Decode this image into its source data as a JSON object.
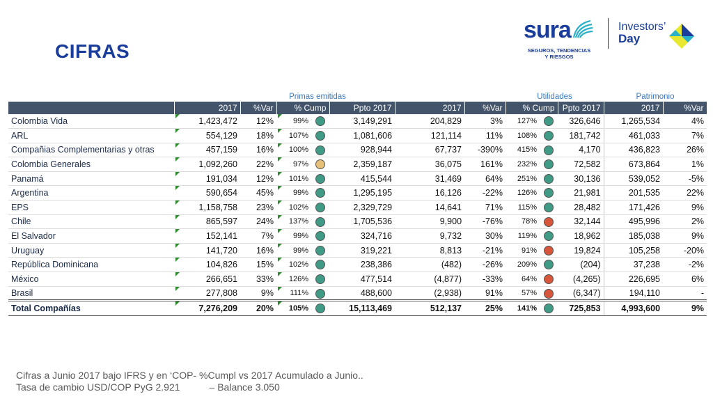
{
  "title": "CIFRAS",
  "logo": {
    "brand": "sura",
    "tagline1": "SEGUROS, TENDENCIAS",
    "tagline2": "Y RIESGOS",
    "investors": "Investors’",
    "day": "Day"
  },
  "groups": {
    "primas": "Primas emitidas",
    "utilidades": "Utilidades",
    "patrimonio": "Patrimonio"
  },
  "headers": [
    "2017",
    "%Var",
    "% Cump",
    "Ppto 2017",
    "2017",
    "%Var",
    "% Cump",
    "Ppto 2017",
    "2017",
    "%Var"
  ],
  "rows": [
    {
      "name": "Colombia Vida",
      "p2017": "1,423,472",
      "pvar": "12%",
      "pcump": "99%",
      "pdot": "g",
      "pppto": "3,149,291",
      "u2017": "204,829",
      "uvar": "3%",
      "ucump": "127%",
      "udot": "g",
      "uppto": "326,646",
      "pa2017": "1,265,534",
      "pavar": "4%"
    },
    {
      "name": "ARL",
      "p2017": "554,129",
      "pvar": "18%",
      "pcump": "107%",
      "pdot": "g",
      "pppto": "1,081,606",
      "u2017": "121,114",
      "uvar": "11%",
      "ucump": "108%",
      "udot": "g",
      "uppto": "181,742",
      "pa2017": "461,033",
      "pavar": "7%"
    },
    {
      "name": "Compañias Complementarias y otras",
      "p2017": "457,159",
      "pvar": "16%",
      "pcump": "100%",
      "pdot": "g",
      "pppto": "928,944",
      "u2017": "67,737",
      "uvar": "-390%",
      "ucump": "415%",
      "udot": "g",
      "uppto": "4,170",
      "pa2017": "436,823",
      "pavar": "26%"
    },
    {
      "name": "Colombia Generales",
      "p2017": "1,092,260",
      "pvar": "22%",
      "pcump": "97%",
      "pdot": "y",
      "pppto": "2,359,187",
      "u2017": "36,075",
      "uvar": "161%",
      "ucump": "232%",
      "udot": "g",
      "uppto": "72,582",
      "pa2017": "673,864",
      "pavar": "1%"
    },
    {
      "name": "Panamá",
      "p2017": "191,034",
      "pvar": "12%",
      "pcump": "101%",
      "pdot": "g",
      "pppto": "415,544",
      "u2017": "31,469",
      "uvar": "64%",
      "ucump": "251%",
      "udot": "g",
      "uppto": "30,136",
      "pa2017": "539,052",
      "pavar": "-5%"
    },
    {
      "name": "Argentina",
      "p2017": "590,654",
      "pvar": "45%",
      "pcump": "99%",
      "pdot": "g",
      "pppto": "1,295,195",
      "u2017": "16,126",
      "uvar": "-22%",
      "ucump": "126%",
      "udot": "g",
      "uppto": "21,981",
      "pa2017": "201,535",
      "pavar": "22%"
    },
    {
      "name": "EPS",
      "p2017": "1,158,758",
      "pvar": "23%",
      "pcump": "102%",
      "pdot": "g",
      "pppto": "2,329,729",
      "u2017": "14,641",
      "uvar": "71%",
      "ucump": "115%",
      "udot": "g",
      "uppto": "28,482",
      "pa2017": "171,426",
      "pavar": "9%"
    },
    {
      "name": "Chile",
      "p2017": "865,597",
      "pvar": "24%",
      "pcump": "137%",
      "pdot": "g",
      "pppto": "1,705,536",
      "u2017": "9,900",
      "uvar": "-76%",
      "ucump": "78%",
      "udot": "r",
      "uppto": "32,144",
      "pa2017": "495,996",
      "pavar": "2%"
    },
    {
      "name": "El Salvador",
      "p2017": "152,141",
      "pvar": "7%",
      "pcump": "99%",
      "pdot": "g",
      "pppto": "324,716",
      "u2017": "9,732",
      "uvar": "30%",
      "ucump": "119%",
      "udot": "g",
      "uppto": "18,962",
      "pa2017": "185,038",
      "pavar": "9%"
    },
    {
      "name": "Uruguay",
      "p2017": "141,720",
      "pvar": "16%",
      "pcump": "99%",
      "pdot": "g",
      "pppto": "319,221",
      "u2017": "8,813",
      "uvar": "-21%",
      "ucump": "91%",
      "udot": "r",
      "uppto": "19,824",
      "pa2017": "105,258",
      "pavar": "-20%"
    },
    {
      "name": "República Dominicana",
      "p2017": "104,826",
      "pvar": "15%",
      "pcump": "102%",
      "pdot": "g",
      "pppto": "238,386",
      "u2017": "(482)",
      "uvar": "-26%",
      "ucump": "209%",
      "udot": "g",
      "uppto": "(204)",
      "pa2017": "37,238",
      "pavar": "-2%"
    },
    {
      "name": "México",
      "p2017": "266,651",
      "pvar": "33%",
      "pcump": "126%",
      "pdot": "g",
      "pppto": "477,514",
      "u2017": "(4,877)",
      "uvar": "-33%",
      "ucump": "64%",
      "udot": "r",
      "uppto": "(4,265)",
      "pa2017": "226,695",
      "pavar": "6%"
    },
    {
      "name": "Brasil",
      "p2017": "277,808",
      "pvar": "9%",
      "pcump": "111%",
      "pdot": "g",
      "pppto": "488,600",
      "u2017": "(2,938)",
      "uvar": "91%",
      "ucump": "57%",
      "udot": "r",
      "uppto": "(6,347)",
      "pa2017": "194,110",
      "pavar": "-"
    }
  ],
  "total": {
    "name": "Total Compañías",
    "p2017": "7,276,209",
    "pvar": "20%",
    "pcump": "105%",
    "pdot": "g",
    "pppto": "15,113,469",
    "u2017": "512,137",
    "uvar": "25%",
    "ucump": "141%",
    "udot": "g",
    "uppto": "725,853",
    "pa2017": "4,993,600",
    "pavar": "9%"
  },
  "footnote": {
    "line1": "Cifras a Junio 2017 bajo IFRS y en ‘COP- %Cumpl vs 2017 Acumulado a Junio..",
    "line2a": "Tasa de cambio USD/COP  PyG 2.921",
    "line2b": "– Balance 3.050"
  },
  "colors": {
    "header_bg": "#44546a",
    "title": "#1a3d9c",
    "group_label": "#3b7bbf",
    "dot_green": "#3f9a86",
    "dot_yellow": "#e6c079",
    "dot_red": "#d6553b"
  }
}
